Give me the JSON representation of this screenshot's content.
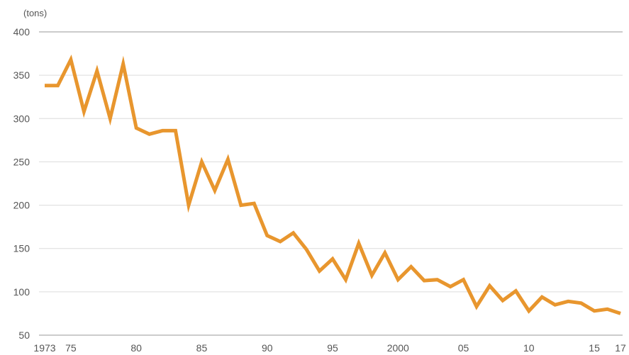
{
  "chart_data": {
    "type": "line",
    "title": "",
    "ylabel": "(tons)",
    "xlabel": "",
    "ylim": [
      50,
      400
    ],
    "yticks": [
      50,
      100,
      150,
      200,
      250,
      300,
      350,
      400
    ],
    "xlim": [
      1973,
      2017
    ],
    "xticks": [
      {
        "value": 1973,
        "label": "1973"
      },
      {
        "value": 1975,
        "label": "75"
      },
      {
        "value": 1980,
        "label": "80"
      },
      {
        "value": 1985,
        "label": "85"
      },
      {
        "value": 1990,
        "label": "90"
      },
      {
        "value": 1995,
        "label": "95"
      },
      {
        "value": 2000,
        "label": "2000"
      },
      {
        "value": 2005,
        "label": "05"
      },
      {
        "value": 2010,
        "label": "10"
      },
      {
        "value": 2015,
        "label": "15"
      },
      {
        "value": 2017,
        "label": "17"
      }
    ],
    "grid": "horizontal",
    "line_color": "#E8962E",
    "grid_color": "#dcdcdc",
    "series": [
      {
        "x": [
          1973,
          1974,
          1975,
          1976,
          1977,
          1978,
          1979,
          1980,
          1981,
          1982,
          1983,
          1984,
          1985,
          1986,
          1987,
          1988,
          1989,
          1990,
          1991,
          1992,
          1993,
          1994,
          1995,
          1996,
          1997,
          1998,
          1999,
          2000,
          2001,
          2002,
          2003,
          2004,
          2005,
          2006,
          2007,
          2008,
          2009,
          2010,
          2011,
          2012,
          2013,
          2014,
          2015,
          2016,
          2017
        ],
        "values": [
          338,
          338,
          368,
          308,
          355,
          300,
          363,
          289,
          282,
          286,
          286,
          200,
          250,
          217,
          253,
          200,
          202,
          165,
          158,
          168,
          149,
          124,
          138,
          114,
          156,
          119,
          145,
          114,
          129,
          113,
          114,
          106,
          114,
          83,
          107,
          90,
          101,
          78,
          94,
          85,
          89,
          87,
          78,
          80,
          75
        ]
      }
    ]
  }
}
